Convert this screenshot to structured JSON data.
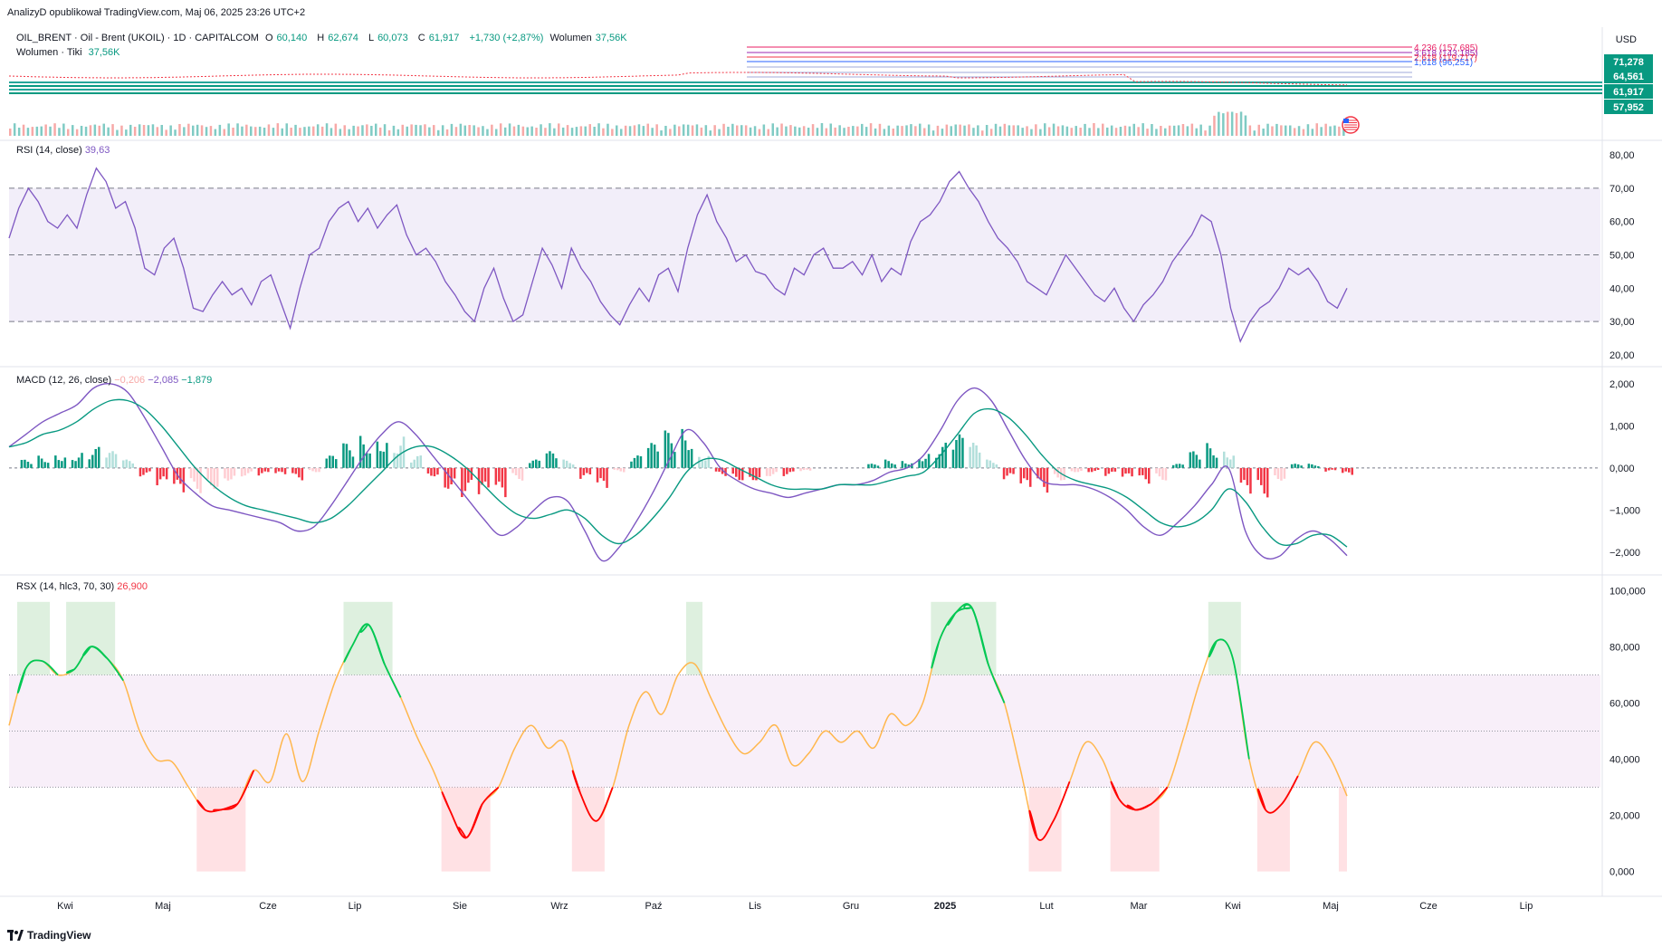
{
  "publisher_line": "AnalizyD opublikował TradingView.com, Maj 06, 2025 23:26 UTC+2",
  "symbol": {
    "name": "OIL_BRENT · Oil - Brent (UKOIL) · 1D · CAPITALCOM",
    "open_label": "O",
    "open": "60,140",
    "high_label": "H",
    "high": "62,674",
    "low_label": "L",
    "low": "60,073",
    "close_label": "C",
    "close": "61,917",
    "change": "+1,730 (+2,87%)",
    "volume_label": "Wolumen",
    "volume": "37,56K"
  },
  "volume_legend": {
    "label": "Wolumen · Tiki",
    "value": "37,56K"
  },
  "currency": "USD",
  "price_axis_labels": [
    {
      "text": "71,278",
      "color": "#089981"
    },
    {
      "text": "64,561",
      "color": "#089981"
    },
    {
      "text": "61,917",
      "color": "#089981"
    },
    {
      "text": "57,952",
      "color": "#089981"
    }
  ],
  "fib_levels": [
    {
      "text": "4,236 (157,685)",
      "color": "#e91e63"
    },
    {
      "text": "3,618 (143,185)",
      "color": "#9c27b0"
    },
    {
      "text": "2,618 (119,717)",
      "color": "#f23645"
    },
    {
      "text": "1,618 (96,251)",
      "color": "#2962ff"
    }
  ],
  "rsi": {
    "title": "RSI (14, close)",
    "value": "39,63",
    "value_color": "#7e57c2",
    "line_color": "#7e57c2",
    "band_color": "#7e57c2",
    "ylim": [
      17,
      83
    ],
    "upper": 70,
    "middle": 50,
    "lower": 30,
    "ticks": [
      "80,00",
      "70,00",
      "60,00",
      "50,00",
      "40,00",
      "30,00",
      "20,00"
    ],
    "tick_values": [
      80,
      70,
      60,
      50,
      40,
      30,
      20
    ]
  },
  "macd": {
    "title": "MACD (12, 26, close)",
    "hist_value": "−0,206",
    "hist_value_color": "#f7a9a7",
    "macd_value": "−2,085",
    "macd_value_color": "#7e57c2",
    "signal_value": "−1,879",
    "signal_value_color": "#089981",
    "ylim": [
      -2.5,
      2.3
    ],
    "ticks": [
      "2,000",
      "1,000",
      "0,000",
      "−1,000",
      "−2,000"
    ],
    "tick_values": [
      2,
      1,
      0,
      -1,
      -2
    ]
  },
  "rsx": {
    "title": "RSX (14, hlc3, 70, 30)",
    "value": "26,900",
    "value_color": "#f23645",
    "ylim": [
      -4,
      104
    ],
    "upper": 70,
    "middle": 50,
    "lower": 30,
    "ticks": [
      "100,000",
      "80,000",
      "60,000",
      "40,000",
      "20,000",
      "0,000"
    ],
    "tick_values": [
      100,
      80,
      60,
      40,
      20,
      0
    ]
  },
  "time_axis": [
    "Kwi",
    "Maj",
    "Cze",
    "Lip",
    "Sie",
    "Wrz",
    "Paź",
    "Lis",
    "Gru",
    "2025",
    "Lut",
    "Mar",
    "Kwi",
    "Maj",
    "Cze",
    "Lip"
  ],
  "footer": "TradingView",
  "chart_data": [
    {
      "type": "line",
      "title": "RSI (14, close)",
      "x_start": "Mar 2024",
      "x_end": "Maj 2025",
      "values": [
        55,
        64,
        70,
        66,
        60,
        58,
        62,
        58,
        68,
        76,
        72,
        64,
        66,
        58,
        46,
        44,
        52,
        55,
        46,
        34,
        33,
        38,
        42,
        38,
        40,
        35,
        42,
        44,
        36,
        28,
        40,
        50,
        52,
        60,
        64,
        66,
        60,
        64,
        58,
        62,
        65,
        56,
        50,
        52,
        48,
        42,
        38,
        33,
        30,
        40,
        46,
        37,
        30,
        32,
        42,
        52,
        47,
        40,
        52,
        46,
        42,
        36,
        32,
        29,
        35,
        40,
        36,
        44,
        46,
        39,
        52,
        62,
        68,
        60,
        55,
        48,
        50,
        45,
        44,
        40,
        38,
        46,
        44,
        50,
        52,
        46,
        46,
        48,
        44,
        50,
        42,
        46,
        44,
        54,
        60,
        62,
        66,
        72,
        75,
        70,
        66,
        60,
        55,
        52,
        48,
        42,
        40,
        38,
        44,
        50,
        46,
        42,
        38,
        36,
        40,
        34,
        30,
        35,
        38,
        42,
        48,
        52,
        56,
        62,
        60,
        50,
        34,
        24,
        30,
        34,
        36,
        40,
        46,
        44,
        46,
        42,
        36,
        34,
        40
      ]
    },
    {
      "type": "line",
      "title": "MACD (12, 26, close)",
      "x_start": "Mar 2024",
      "x_end": "Maj 2025",
      "series": [
        {
          "name": "MACD",
          "values": [
            0.5,
            0.8,
            1.1,
            1.3,
            1.5,
            1.9,
            2.0,
            1.8,
            1.2,
            0.5,
            -0.2,
            -0.6,
            -0.9,
            -1.0,
            -1.1,
            -1.2,
            -1.3,
            -1.5,
            -1.4,
            -0.9,
            -0.3,
            0.3,
            0.8,
            1.1,
            0.8,
            0.3,
            -0.2,
            -0.7,
            -1.2,
            -1.6,
            -1.4,
            -1.0,
            -0.7,
            -0.8,
            -1.5,
            -2.2,
            -1.9,
            -1.3,
            -0.6,
            0.2,
            0.9,
            0.6,
            0.0,
            -0.3,
            -0.5,
            -0.6,
            -0.7,
            -0.6,
            -0.5,
            -0.4,
            -0.4,
            -0.3,
            -0.1,
            0.0,
            0.3,
            0.9,
            1.6,
            1.9,
            1.6,
            0.9,
            0.2,
            -0.3,
            -0.4,
            -0.4,
            -0.5,
            -0.7,
            -1.0,
            -1.4,
            -1.6,
            -1.3,
            -0.9,
            -0.4,
            0.0,
            -1.5,
            -2.1,
            -2.1,
            -1.7,
            -1.5,
            -1.7,
            -2.085
          ]
        },
        {
          "name": "Signal",
          "values": [
            0.5,
            0.6,
            0.8,
            0.9,
            1.1,
            1.4,
            1.6,
            1.6,
            1.4,
            1.0,
            0.5,
            0.0,
            -0.4,
            -0.7,
            -0.9,
            -1.0,
            -1.1,
            -1.2,
            -1.3,
            -1.2,
            -0.9,
            -0.5,
            -0.1,
            0.3,
            0.5,
            0.5,
            0.3,
            0.0,
            -0.4,
            -0.8,
            -1.1,
            -1.2,
            -1.1,
            -1.0,
            -1.2,
            -1.6,
            -1.8,
            -1.6,
            -1.2,
            -0.7,
            -0.1,
            0.2,
            0.2,
            0.0,
            -0.2,
            -0.4,
            -0.5,
            -0.5,
            -0.5,
            -0.4,
            -0.4,
            -0.4,
            -0.3,
            -0.2,
            -0.1,
            0.3,
            0.8,
            1.3,
            1.4,
            1.2,
            0.8,
            0.3,
            -0.1,
            -0.3,
            -0.4,
            -0.5,
            -0.7,
            -1.0,
            -1.3,
            -1.4,
            -1.3,
            -1.0,
            -0.5,
            -0.8,
            -1.4,
            -1.8,
            -1.8,
            -1.6,
            -1.6,
            -1.879
          ]
        }
      ],
      "histogram": [
        0.0,
        0.2,
        0.3,
        0.4,
        0.4,
        0.5,
        0.4,
        0.2,
        -0.2,
        -0.5,
        -0.7,
        -0.6,
        -0.5,
        -0.3,
        -0.2,
        -0.2,
        -0.2,
        -0.3,
        -0.1,
        0.3,
        0.6,
        0.8,
        0.9,
        0.8,
        0.3,
        -0.2,
        -0.5,
        -0.7,
        -0.8,
        -0.8,
        -0.3,
        0.2,
        0.4,
        0.2,
        -0.3,
        -0.6,
        -0.1,
        0.3,
        0.6,
        0.9,
        1.0,
        0.4,
        -0.2,
        -0.3,
        -0.3,
        -0.2,
        -0.2,
        -0.1,
        0.0,
        0.0,
        0.0,
        0.1,
        0.2,
        0.2,
        0.4,
        0.6,
        0.8,
        0.6,
        0.2,
        -0.3,
        -0.6,
        -0.6,
        -0.3,
        -0.1,
        -0.1,
        -0.2,
        -0.3,
        -0.4,
        -0.3,
        0.1,
        0.4,
        0.6,
        0.5,
        -0.7,
        -0.7,
        -0.3,
        0.1,
        0.1,
        -0.1,
        -0.206
      ]
    },
    {
      "type": "line",
      "title": "RSX (14, hlc3, 70, 30)",
      "x_start": "Mar 2024",
      "x_end": "Maj 2025",
      "values": [
        52,
        72,
        75,
        70,
        72,
        80,
        76,
        68,
        50,
        40,
        39,
        30,
        22,
        22,
        24,
        36,
        32,
        49,
        32,
        50,
        68,
        80,
        88,
        74,
        62,
        48,
        36,
        22,
        12,
        24,
        30,
        44,
        52,
        44,
        46,
        28,
        18,
        30,
        52,
        64,
        56,
        70,
        74,
        62,
        50,
        42,
        46,
        52,
        38,
        42,
        50,
        46,
        50,
        44,
        56,
        52,
        60,
        82,
        92,
        94,
        74,
        60,
        36,
        12,
        18,
        32,
        46,
        40,
        26,
        22,
        24,
        30,
        48,
        68,
        82,
        76,
        40,
        22,
        24,
        34,
        46,
        40,
        26.9
      ]
    }
  ]
}
